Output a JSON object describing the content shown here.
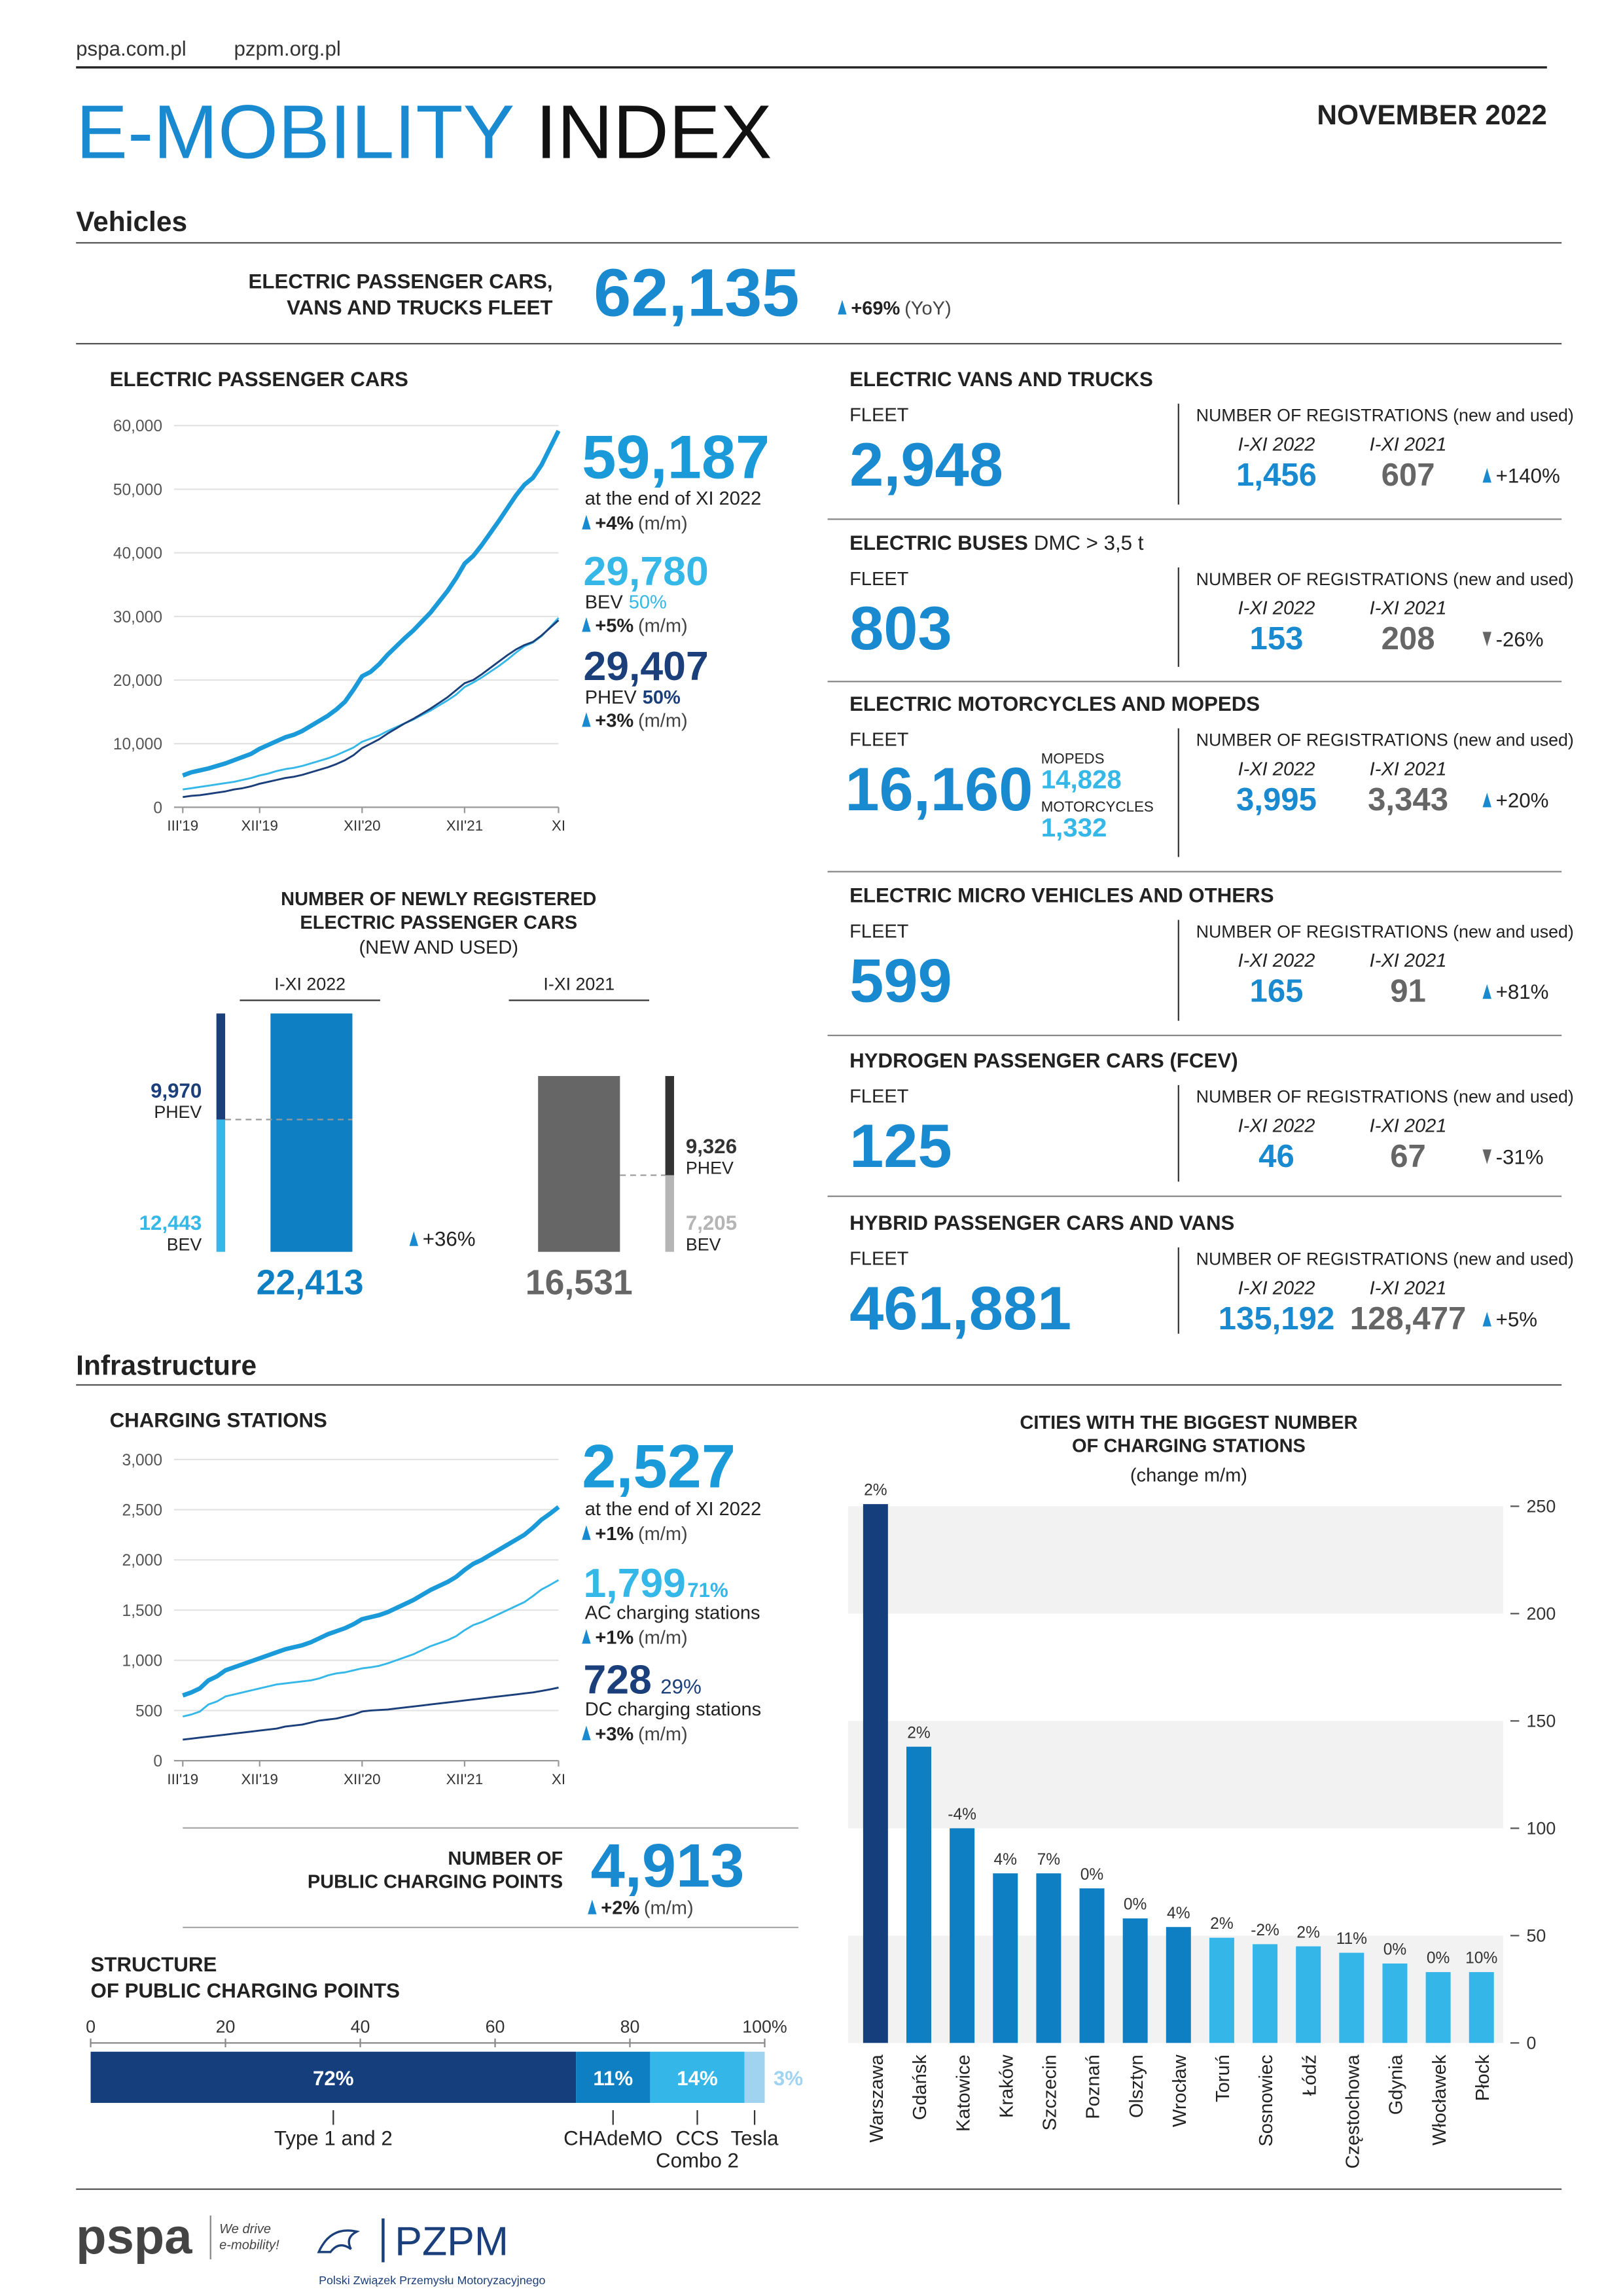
{
  "header": {
    "links": [
      "pspa.com.pl",
      "pzpm.org.pl"
    ],
    "title_e_mobility": "E-MOBILITY",
    "title_index": "INDEX",
    "date": "NOVEMBER 2022"
  },
  "sections": [
    "Vehicles",
    "Infrastructure"
  ],
  "fleet_total": {
    "label": [
      "ELECTRIC PASSENGER CARS,",
      "VANS AND TRUCKS FLEET"
    ],
    "value": "62,135",
    "change": "+69%",
    "change_note": "(YoY)"
  },
  "passenger_cars_summary": {
    "total": "59,187",
    "total_note": "at the end of XI 2022",
    "total_change": "+4%",
    "period": "(m/m)",
    "bev": "29,780",
    "bev_share": "50%",
    "bev_change": "+5%",
    "phev": "29,407",
    "phev_share": "50%",
    "phev_change": "+3%"
  },
  "vehicle_panels": [
    {
      "title": "ELECTRIC VANS AND TRUCKS",
      "fleet_label": "FLEET",
      "fleet": "2,948",
      "registrations_label": "NUMBER OF REGISTRATIONS (new and used)",
      "period_labels": [
        "I-XI 2022",
        "I-XI 2021"
      ],
      "registrations": [
        "1,456",
        "607"
      ],
      "change": "+140%",
      "direction": "up"
    },
    {
      "title": "ELECTRIC BUSES",
      "title_note": "DMC > 3,5 t",
      "fleet_label": "FLEET",
      "fleet": "803",
      "registrations_label": "NUMBER OF REGISTRATIONS (new and used)",
      "period_labels": [
        "I-XI 2022",
        "I-XI 2021"
      ],
      "registrations": [
        "153",
        "208"
      ],
      "change": "-26%",
      "direction": "down"
    },
    {
      "title": "ELECTRIC MOTORCYCLES AND MOPEDS",
      "fleet_label": "FLEET",
      "fleet": "16,160",
      "sub": [
        {
          "label": "MOPEDS",
          "value": "14,828"
        },
        {
          "label": "MOTORCYCLES",
          "value": "1,332"
        }
      ],
      "registrations_label": "NUMBER OF REGISTRATIONS (new and used)",
      "period_labels": [
        "I-XI 2022",
        "I-XI 2021"
      ],
      "registrations": [
        "3,995",
        "3,343"
      ],
      "change": "+20%",
      "direction": "up"
    },
    {
      "title": "ELECTRIC MICRO VEHICLES AND OTHERS",
      "fleet_label": "FLEET",
      "fleet": "599",
      "registrations_label": "NUMBER OF REGISTRATIONS (new and used)",
      "period_labels": [
        "I-XI 2022",
        "I-XI 2021"
      ],
      "registrations": [
        "165",
        "91"
      ],
      "change": "+81%",
      "direction": "up"
    },
    {
      "title": "HYDROGEN PASSENGER CARS (FCEV)",
      "fleet_label": "FLEET",
      "fleet": "125",
      "registrations_label": "NUMBER OF REGISTRATIONS (new and used)",
      "period_labels": [
        "I-XI 2022",
        "I-XI 2021"
      ],
      "registrations": [
        "46",
        "67"
      ],
      "change": "-31%",
      "direction": "down"
    },
    {
      "title": "HYBRID PASSENGER CARS AND VANS",
      "fleet_label": "FLEET",
      "fleet": "461,881",
      "registrations_label": "NUMBER OF REGISTRATIONS (new and used)",
      "period_labels": [
        "I-XI 2022",
        "I-XI 2021"
      ],
      "registrations": [
        "135,192",
        "128,477"
      ],
      "change": "+5%",
      "direction": "up"
    }
  ],
  "charging_summary": {
    "total": "2,527",
    "total_note": "at the end of XI 2022",
    "total_change": "+1%",
    "period": "(m/m)",
    "ac": "1,799",
    "ac_share": "71%",
    "ac_change": "+1%",
    "dc": "728",
    "dc_share": "29%",
    "dc_change": "+3%"
  },
  "public_points": {
    "label": [
      "NUMBER OF",
      "PUBLIC CHARGING POINTS"
    ],
    "value": "4,913",
    "change": "+2%",
    "period": "(m/m)"
  },
  "footer": {
    "pspa": "pspa",
    "slogan": [
      "We drive",
      "e-mobility!"
    ],
    "pzpm": "PZPM",
    "pzpm_full": "Polski Związek Przemysłu Motoryzacyjnego"
  },
  "chart_data": [
    {
      "type": "line",
      "title": "ELECTRIC PASSENGER CARS",
      "categories": [
        "III'19",
        null,
        null,
        null,
        null,
        null,
        null,
        null,
        null,
        "XII'19",
        null,
        null,
        null,
        null,
        null,
        null,
        null,
        null,
        null,
        null,
        null,
        "XII'20",
        null,
        null,
        null,
        null,
        null,
        null,
        null,
        null,
        null,
        null,
        null,
        "XII'21",
        null,
        null,
        null,
        null,
        null,
        null,
        null,
        null,
        null,
        null,
        "XI"
      ],
      "series": [
        {
          "color": "#1a9ad9",
          "values": [
            5000,
            5500,
            5800,
            6100,
            6500,
            6900,
            7400,
            7900,
            8400,
            9200,
            9800,
            10400,
            11000,
            11400,
            12000,
            12800,
            13600,
            14400,
            15400,
            16600,
            18500,
            20600,
            21300,
            22500,
            24000,
            25300,
            26600,
            27800,
            29200,
            30600,
            32300,
            34000,
            36000,
            38300,
            39500,
            41200,
            43100,
            45000,
            47000,
            49000,
            50700,
            51800,
            53800,
            56500,
            59187
          ]
        },
        {
          "name": "BEV",
          "color": "#35b8e8",
          "values": [
            2800,
            3000,
            3200,
            3400,
            3600,
            3800,
            4000,
            4300,
            4600,
            5000,
            5300,
            5700,
            6000,
            6200,
            6500,
            6900,
            7300,
            7700,
            8200,
            8800,
            9400,
            10300,
            10800,
            11300,
            12000,
            12600,
            13200,
            13800,
            14500,
            15200,
            16000,
            16800,
            17700,
            18900,
            19600,
            20400,
            21300,
            22200,
            23200,
            24300,
            25300,
            25900,
            26900,
            28300,
            29780
          ]
        },
        {
          "name": "PHEV",
          "color": "#1b3f7a",
          "values": [
            1600,
            1800,
            1900,
            2100,
            2300,
            2500,
            2800,
            3000,
            3300,
            3700,
            4000,
            4300,
            4600,
            4800,
            5100,
            5500,
            5900,
            6300,
            6800,
            7400,
            8200,
            9300,
            10000,
            10700,
            11600,
            12400,
            13200,
            13900,
            14700,
            15500,
            16400,
            17300,
            18400,
            19500,
            20000,
            20900,
            21900,
            22900,
            23900,
            24800,
            25500,
            26000,
            27000,
            28200,
            29407
          ]
        }
      ],
      "ylim": [
        0,
        60000
      ],
      "yticks": [
        0,
        {
          "value": 10000,
          "label": "10,000"
        },
        {
          "value": 20000,
          "label": "20,000"
        },
        {
          "value": 30000,
          "label": "30,000"
        },
        {
          "value": 40000,
          "label": "40,000"
        },
        {
          "value": 50000,
          "label": "50,000"
        },
        {
          "value": 60000,
          "label": "60,000"
        }
      ],
      "grid": true
    },
    {
      "type": "stacked_bar",
      "title": [
        "NUMBER OF NEWLY REGISTERED",
        "ELECTRIC PASSENGER CARS"
      ],
      "subtitle": "(NEW AND USED)",
      "categories": [
        "I-XI 2022",
        "I-XI 2021"
      ],
      "totals": {
        "values": [
          22413,
          16531
        ],
        "value_labels": [
          "22,413",
          "16,531"
        ],
        "colors": [
          "#0d7fc2",
          "#666666"
        ]
      },
      "series": [
        {
          "name": "PHEV",
          "colors": [
            "#1b3f7a",
            "#333333"
          ],
          "values": [
            9970,
            9326
          ],
          "value_labels": [
            "9,970",
            "9,326"
          ]
        },
        {
          "name": "BEV",
          "colors": [
            "#35b8e8",
            "#b5b5b5"
          ],
          "values": [
            12443,
            7205
          ],
          "value_labels": [
            "12,443",
            "7,205"
          ]
        }
      ],
      "change": "+36%"
    },
    {
      "type": "line",
      "title": "CHARGING STATIONS",
      "categories": [
        "III'19",
        null,
        null,
        null,
        null,
        null,
        null,
        null,
        null,
        "XII'19",
        null,
        null,
        null,
        null,
        null,
        null,
        null,
        null,
        null,
        null,
        null,
        "XII'20",
        null,
        null,
        null,
        null,
        null,
        null,
        null,
        null,
        null,
        null,
        null,
        "XII'21",
        null,
        null,
        null,
        null,
        null,
        null,
        null,
        null,
        null,
        null,
        "XI"
      ],
      "series": [
        {
          "color": "#1a9ad9",
          "values": [
            650,
            680,
            720,
            800,
            840,
            900,
            930,
            960,
            990,
            1020,
            1050,
            1080,
            1110,
            1130,
            1150,
            1180,
            1220,
            1260,
            1290,
            1320,
            1360,
            1410,
            1430,
            1450,
            1480,
            1520,
            1560,
            1600,
            1650,
            1700,
            1740,
            1780,
            1830,
            1900,
            1960,
            2000,
            2050,
            2100,
            2150,
            2200,
            2250,
            2320,
            2400,
            2460,
            2527
          ]
        },
        {
          "name": "AC charging stations",
          "color": "#35b8e8",
          "values": [
            440,
            460,
            490,
            560,
            590,
            640,
            660,
            680,
            700,
            720,
            740,
            760,
            770,
            780,
            790,
            800,
            820,
            850,
            870,
            880,
            900,
            920,
            930,
            945,
            970,
            1000,
            1030,
            1060,
            1100,
            1140,
            1170,
            1200,
            1240,
            1300,
            1350,
            1380,
            1420,
            1460,
            1500,
            1540,
            1580,
            1640,
            1705,
            1750,
            1799
          ]
        },
        {
          "name": "DC charging stations",
          "color": "#1b3f7a",
          "values": [
            210,
            220,
            230,
            240,
            250,
            260,
            270,
            280,
            290,
            300,
            310,
            320,
            340,
            350,
            360,
            380,
            400,
            410,
            420,
            440,
            460,
            490,
            500,
            505,
            510,
            520,
            530,
            540,
            550,
            560,
            570,
            580,
            590,
            600,
            610,
            620,
            630,
            640,
            650,
            660,
            670,
            680,
            695,
            710,
            728
          ]
        }
      ],
      "ylim": [
        0,
        3000
      ],
      "yticks": [
        0,
        500,
        {
          "value": 1000,
          "label": "1,000"
        },
        {
          "value": 1500,
          "label": "1,500"
        },
        {
          "value": 2000,
          "label": "2,000"
        },
        {
          "value": 2500,
          "label": "2,500"
        },
        {
          "value": 3000,
          "label": "3,000"
        }
      ],
      "grid": true
    },
    {
      "type": "stacked_hbar",
      "title": [
        "STRUCTURE",
        "OF PUBLIC CHARGING POINTS"
      ],
      "xlim": [
        0,
        100
      ],
      "xticks": [
        0,
        20,
        40,
        60,
        80,
        {
          "value": 100,
          "label": "100%"
        }
      ],
      "series": [
        {
          "name": "Type 1 and 2",
          "color": "#143f7c",
          "values": [
            72
          ],
          "value_labels": [
            "72%"
          ]
        },
        {
          "name": "CHAdeMO",
          "color": "#0d7fc2",
          "values": [
            11
          ],
          "value_labels": [
            "11%"
          ]
        },
        {
          "name": "CCS Combo 2",
          "color": "#34b6e8",
          "values": [
            14
          ],
          "value_labels": [
            "14%"
          ]
        },
        {
          "name": "Tesla",
          "color": "#9fd3f0",
          "values": [
            3
          ],
          "value_labels": [
            "3%"
          ]
        }
      ]
    },
    {
      "type": "bar",
      "title": [
        "CITIES WITH THE BIGGEST NUMBER",
        "OF CHARGING STATIONS"
      ],
      "subtitle": "(change m/m)",
      "categories": [
        "Warszawa",
        "Gdańsk",
        "Katowice",
        "Kraków",
        "Szczecin",
        "Poznań",
        "Olsztyn",
        "Wrocław",
        "Toruń",
        "Sosnowiec",
        "Łódź",
        "Częstochowa",
        "Gdynia",
        "Włocławek",
        "Płock"
      ],
      "values": [
        251,
        138,
        100,
        79,
        79,
        72,
        58,
        54,
        49,
        46,
        45,
        42,
        37,
        33,
        33
      ],
      "colors": [
        "#143f7c",
        "#0d7fc2",
        "#0d7fc2",
        "#0d7fc2",
        "#0d7fc2",
        "#0d7fc2",
        "#0d7fc2",
        "#0d7fc2",
        "#34b6e8",
        "#34b6e8",
        "#34b6e8",
        "#34b6e8",
        "#34b6e8",
        "#34b6e8",
        "#34b6e8"
      ],
      "changes": [
        "2%",
        "2%",
        "-4%",
        "4%",
        "7%",
        "0%",
        "0%",
        "4%",
        "2%",
        "-2%",
        "2%",
        "11%",
        "0%",
        "0%",
        "10%"
      ],
      "ylim": [
        0,
        250
      ],
      "yticks": [
        0,
        50,
        100,
        150,
        200,
        250
      ]
    }
  ]
}
